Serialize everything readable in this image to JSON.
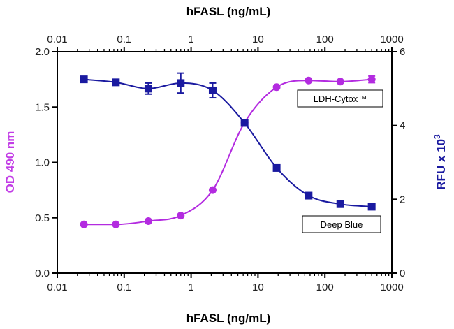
{
  "chart_data": {
    "type": "scatter",
    "x_scale": "log",
    "xlim": [
      0.01,
      1000
    ],
    "xlabel_top": "hFASL (ng/mL)",
    "xlabel_bottom": "hFASL (ng/mL)",
    "ylabel_left": "OD 490 nm",
    "ylabel_right_prefix": "RFU x 10",
    "ylabel_right_exponent": "3",
    "ylim_left": [
      0.0,
      2.0
    ],
    "ylim_right": [
      0,
      6
    ],
    "x_ticks": [
      "0.01",
      "0.1",
      "1",
      "10",
      "100",
      "1000"
    ],
    "y_left_ticks": [
      "0.0",
      "0.5",
      "1.0",
      "1.5",
      "2.0"
    ],
    "y_right_ticks": [
      "0",
      "2",
      "4",
      "6"
    ],
    "grid": false,
    "series": [
      {
        "name": "LDH-Cytox™",
        "axis": "left",
        "color": "#b32be0",
        "marker": "circle",
        "x": [
          0.025,
          0.075,
          0.23,
          0.7,
          2.1,
          6.3,
          19,
          57,
          170,
          500
        ],
        "y": [
          0.44,
          0.44,
          0.47,
          0.52,
          0.75,
          1.36,
          1.68,
          1.74,
          1.73,
          1.75
        ],
        "err": [
          0,
          0,
          0,
          0,
          0,
          0,
          0,
          0,
          0,
          0.03
        ]
      },
      {
        "name": "Deep Blue",
        "axis": "right",
        "color": "#1a1aa0",
        "marker": "square",
        "x": [
          0.025,
          0.075,
          0.23,
          0.7,
          2.1,
          6.3,
          19,
          57,
          170,
          500
        ],
        "y": [
          5.25,
          5.17,
          5.0,
          5.15,
          4.95,
          4.07,
          2.85,
          2.1,
          1.87,
          1.8
        ],
        "err": [
          0,
          0,
          0.15,
          0.27,
          0.2,
          0,
          0,
          0,
          0,
          0
        ]
      }
    ]
  }
}
